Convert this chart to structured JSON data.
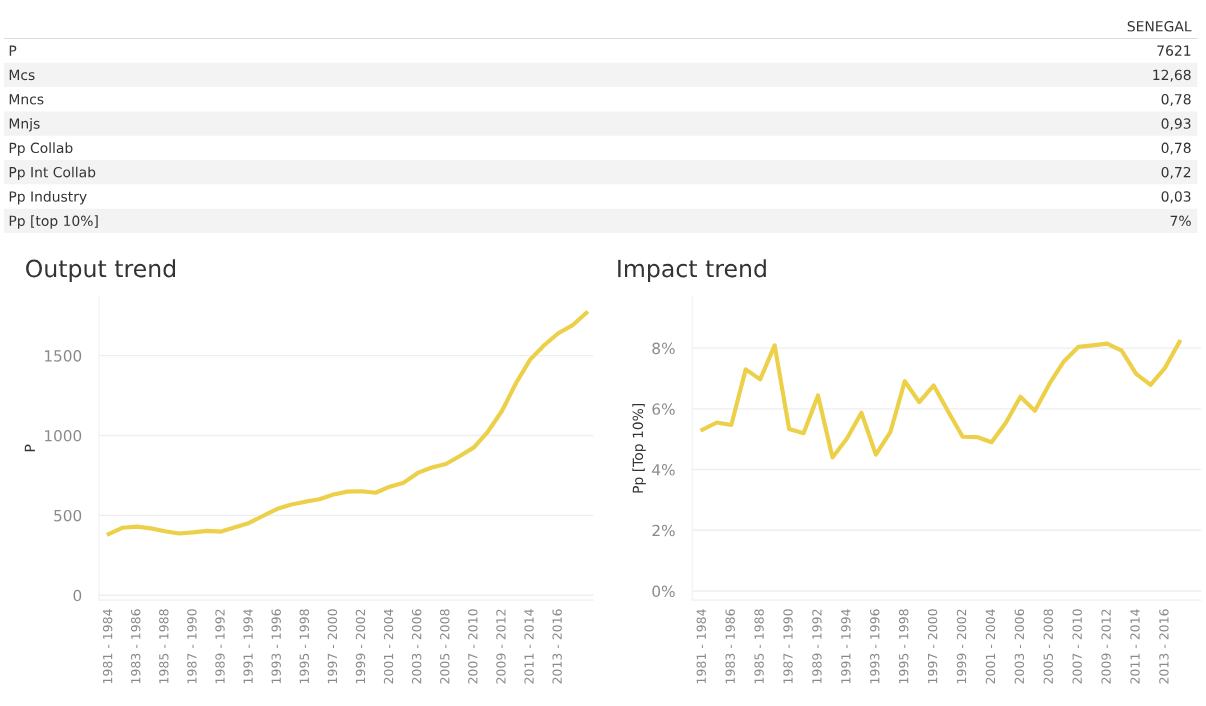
{
  "chart_data": [
    {
      "type": "other",
      "title": "SENEGAL",
      "categories": [
        "P",
        "Mcs",
        "Mncs",
        "Mnjs",
        "Pp Collab",
        "Pp Int Collab",
        "Pp Industry",
        "Pp [top 10%]"
      ],
      "value_labels": [
        "7621",
        "12,68",
        "0,78",
        "0,93",
        "0,78",
        "0,72",
        "0,03",
        "7%"
      ]
    },
    {
      "type": "line",
      "title": "Output trend",
      "ylabel": "P",
      "categories": [
        "1981 - 1984",
        null,
        "1983 - 1986",
        null,
        "1985 - 1988",
        null,
        "1987 - 1990",
        null,
        "1989 - 1992",
        null,
        "1991 - 1994",
        null,
        "1993 - 1996",
        null,
        "1995 - 1998",
        null,
        "1997 - 2000",
        null,
        "1999 - 2002",
        null,
        "2001 - 2004",
        null,
        "2003 - 2006",
        null,
        "2005 - 2008",
        null,
        "2007 - 2010",
        null,
        "2009 - 2012",
        null,
        "2011 - 2014",
        null,
        "2013 - 2016",
        null,
        null
      ],
      "series": [
        {
          "color": "#ecd04a",
          "values": [
            383,
            423,
            430,
            419,
            401,
            387,
            394,
            403,
            399,
            426,
            453,
            498,
            541,
            568,
            586,
            601,
            631,
            649,
            651,
            642,
            680,
            705,
            766,
            800,
            822,
            872,
            926,
            1025,
            1155,
            1329,
            1475,
            1565,
            1640,
            1689,
            1768
          ]
        }
      ],
      "ylim": [
        -30,
        1870
      ],
      "yticks": [
        0,
        500,
        1000,
        1500
      ],
      "grid": "y",
      "marker": "none",
      "line_style": "solid"
    },
    {
      "type": "line",
      "title": "Impact trend",
      "ylabel": "Pp [Top 10%]",
      "categories": [
        "1981 - 1984",
        null,
        "1983 - 1986",
        null,
        "1985 - 1988",
        null,
        "1987 - 1990",
        null,
        "1989 - 1992",
        null,
        "1991 - 1994",
        null,
        "1993 - 1996",
        null,
        "1995 - 1998",
        null,
        "1997 - 2000",
        null,
        "1999 - 2002",
        null,
        "2001 - 2004",
        null,
        "2003 - 2006",
        null,
        "2005 - 2008",
        null,
        "2007 - 2010",
        null,
        "2009 - 2012",
        null,
        "2011 - 2014",
        null,
        "2013 - 2016",
        null,
        null
      ],
      "series": [
        {
          "color": "#ecd04a",
          "values": [
            5.31,
            5.55,
            5.47,
            7.3,
            6.97,
            8.09,
            5.34,
            5.2,
            6.44,
            4.4,
            5.02,
            5.87,
            4.49,
            5.23,
            6.91,
            6.22,
            6.77,
            5.91,
            5.08,
            5.07,
            4.9,
            5.55,
            6.4,
            5.94,
            6.82,
            7.56,
            8.04,
            8.09,
            8.15,
            7.92,
            7.15,
            6.79,
            7.35,
            8.21,
            null
          ]
        }
      ],
      "ylim": [
        -0.3,
        9.7
      ],
      "yticks": [
        {
          "value": 0,
          "label": "0%"
        },
        {
          "value": 2,
          "label": "2%"
        },
        {
          "value": 4,
          "label": "4%"
        },
        {
          "value": 6,
          "label": "6%"
        },
        {
          "value": 8,
          "label": "8%"
        }
      ],
      "grid": "y",
      "marker": "none",
      "line_style": "solid"
    }
  ]
}
